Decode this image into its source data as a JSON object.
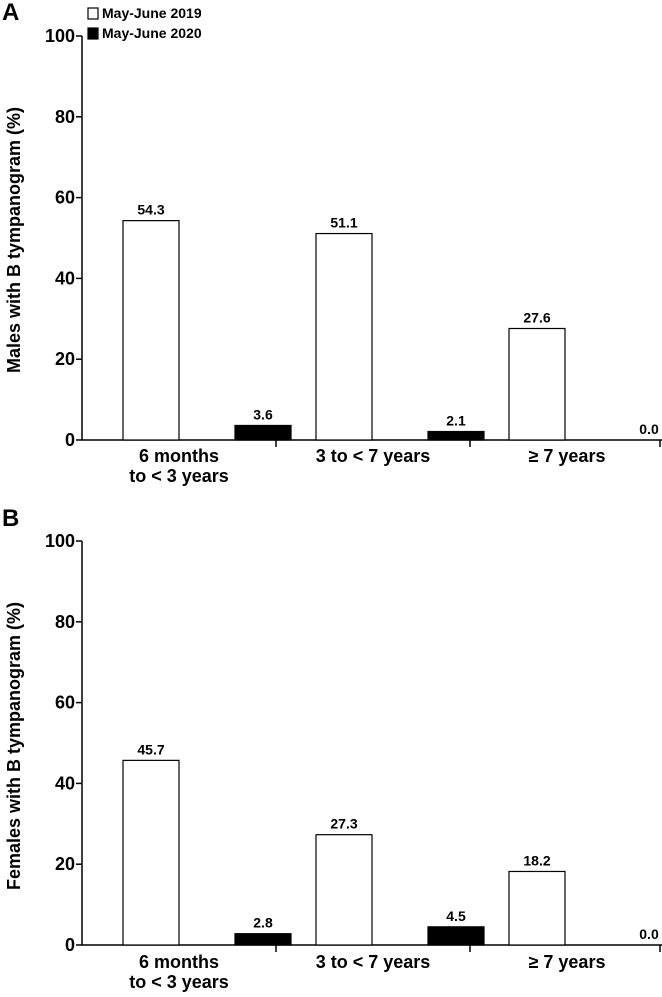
{
  "chart_data": [
    {
      "type": "bar",
      "panel": "A",
      "title": "",
      "ylabel": "Males with B tympanogram (%)",
      "xlabel": "",
      "ylim": [
        0,
        100
      ],
      "yticks": [
        "0",
        "20",
        "40",
        "60",
        "80",
        "100"
      ],
      "categories": [
        [
          "6 months",
          "to < 3 years"
        ],
        [
          "3 to < 7 years"
        ],
        [
          "≥ 7 years"
        ]
      ],
      "series": [
        {
          "name": "May-June 2019",
          "values": [
            54.3,
            51.1,
            27.6
          ],
          "labels": [
            "54.3",
            "51.1",
            "27.6"
          ],
          "color": "#ffffff"
        },
        {
          "name": "May-June 2020",
          "values": [
            3.6,
            2.1,
            0.0
          ],
          "labels": [
            "3.6",
            "2.1",
            "0.0"
          ],
          "color": "#000000"
        }
      ],
      "legend": {
        "position": "top-left"
      },
      "grid": false
    },
    {
      "type": "bar",
      "panel": "B",
      "title": "",
      "ylabel": "Females with B tympanogram (%)",
      "xlabel": "",
      "ylim": [
        0,
        100
      ],
      "yticks": [
        "0",
        "20",
        "40",
        "60",
        "80",
        "100"
      ],
      "categories": [
        [
          "6 months",
          "to < 3 years"
        ],
        [
          "3 to < 7 years"
        ],
        [
          "≥ 7 years"
        ]
      ],
      "series": [
        {
          "name": "May-June 2019",
          "values": [
            45.7,
            27.3,
            18.2
          ],
          "labels": [
            "45.7",
            "27.3",
            "18.2"
          ],
          "color": "#ffffff"
        },
        {
          "name": "May-June 2020",
          "values": [
            2.8,
            4.5,
            0.0
          ],
          "labels": [
            "2.8",
            "4.5",
            "0.0"
          ],
          "color": "#000000"
        }
      ],
      "grid": false
    }
  ]
}
